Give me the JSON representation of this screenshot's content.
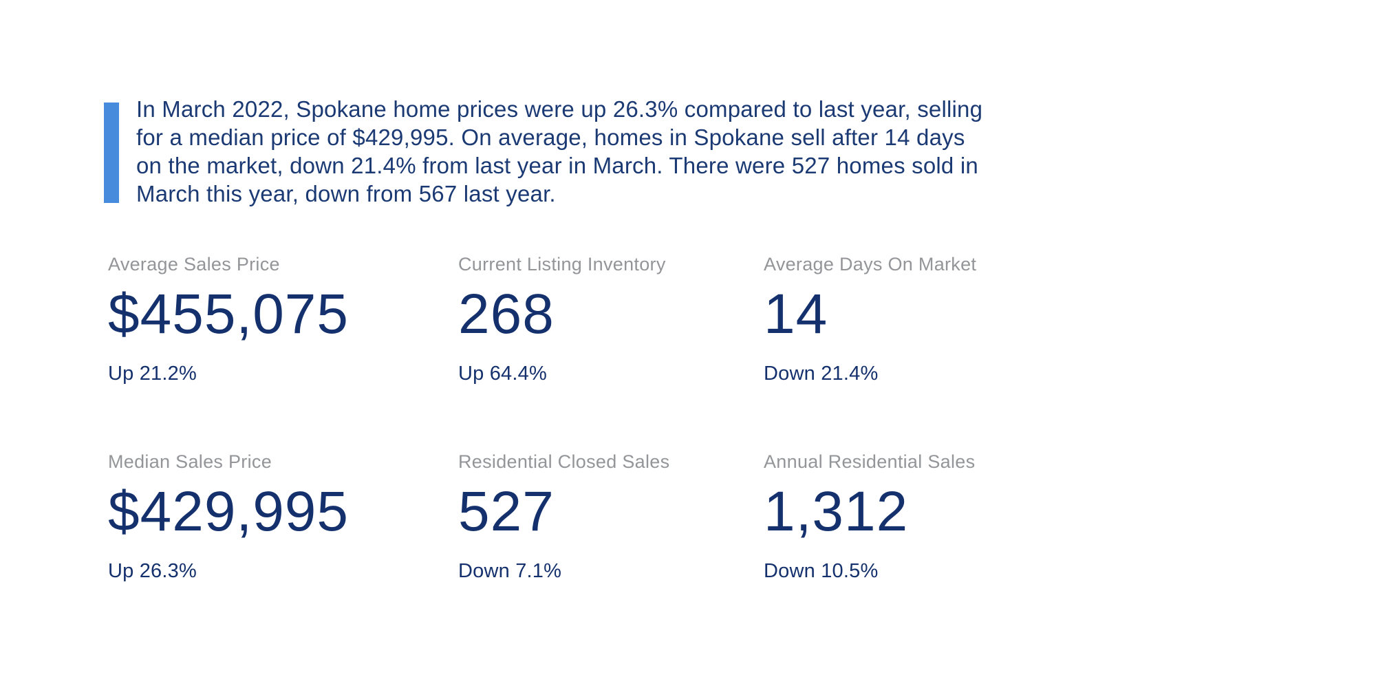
{
  "colors": {
    "page_background": "#FFFFFF",
    "accent_bar_blue": "#478BDC",
    "paragraph_navy": "#1B3A74",
    "stat_navy": "#14316D",
    "label_gray": "#939598"
  },
  "intro": {
    "paragraph": "In March 2022, Spokane home prices were up 26.3% compared to last year, selling\nfor a median price of $429,995. On average, homes in Spokane sell after 14 days\non the market, down 21.4% from last year in March. There were 527 homes sold in\nMarch this year, down from 567 last year."
  },
  "stats": [
    {
      "label": "Average Sales Price",
      "value": "$455,075",
      "change": "Up 21.2%",
      "direction": "up"
    },
    {
      "label": "Current Listing Inventory",
      "value": "268",
      "change": "Up 64.4%",
      "direction": "up"
    },
    {
      "label": "Average Days On Market",
      "value": "14",
      "change": "Down 21.4%",
      "direction": "down"
    },
    {
      "label": "Median Sales Price",
      "value": "$429,995",
      "change": "Up 26.3%",
      "direction": "up"
    },
    {
      "label": "Residential Closed Sales",
      "value": "527",
      "change": "Down 7.1%",
      "direction": "down"
    },
    {
      "label": "Annual Residential Sales",
      "value": "1,312",
      "change": "Down 10.5%",
      "direction": "down"
    }
  ]
}
